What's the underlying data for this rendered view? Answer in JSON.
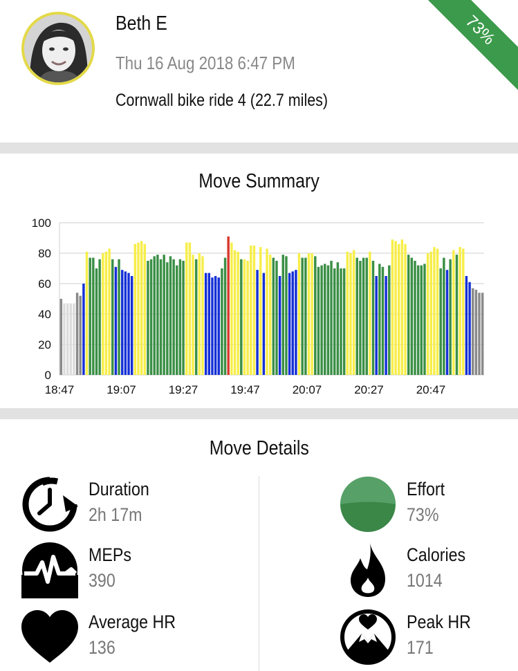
{
  "header": {
    "name": "Beth E",
    "date": "Thu 16 Aug 2018 6:47 PM",
    "activity": "Cornwall bike ride 4 (22.7 miles)",
    "effort_ribbon": "73%"
  },
  "summary": {
    "title": "Move Summary"
  },
  "chart_data": {
    "type": "bar",
    "y_ticks": [
      "0",
      "20",
      "40",
      "60",
      "80",
      "100"
    ],
    "x_ticks": [
      "18:47",
      "19:07",
      "19:27",
      "19:47",
      "20:07",
      "20:27",
      "20:47"
    ],
    "ylim": [
      0,
      100
    ],
    "grid": true,
    "zone_colors": {
      "grey": "#8a8a8a",
      "lightgrey": "#dcdcdc",
      "blue": "#1530d6",
      "green": "#3a8f45",
      "yellow": "#f7ee4a",
      "red": "#d9392e"
    },
    "values": [
      50,
      47,
      47,
      47,
      47,
      54,
      52,
      60,
      81,
      77,
      77,
      70,
      76,
      80,
      81,
      83,
      76,
      71,
      76,
      69,
      68,
      67,
      65,
      86,
      87,
      88,
      86,
      75,
      76,
      78,
      79,
      76,
      79,
      74,
      78,
      76,
      72,
      76,
      75,
      87,
      87,
      79,
      76,
      80,
      78,
      67,
      67,
      64,
      65,
      64,
      70,
      77,
      91,
      87,
      82,
      81,
      76,
      76,
      75,
      85,
      85,
      69,
      84,
      67,
      83,
      79,
      77,
      75,
      65,
      79,
      78,
      67,
      68,
      69,
      80,
      77,
      77,
      80,
      80,
      78,
      71,
      72,
      73,
      72,
      75,
      70,
      74,
      70,
      70,
      81,
      80,
      82,
      77,
      75,
      77,
      77,
      81,
      75,
      65,
      73,
      71,
      65,
      72,
      89,
      88,
      86,
      89,
      86,
      79,
      77,
      75,
      72,
      72,
      73,
      80,
      81,
      84,
      83,
      70,
      77,
      69,
      76,
      82,
      79,
      84,
      83,
      65,
      61,
      57,
      56,
      54,
      54
    ],
    "zones": [
      "grey",
      "lightgrey",
      "lightgrey",
      "lightgrey",
      "lightgrey",
      "grey",
      "grey",
      "blue",
      "yellow",
      "green",
      "green",
      "green",
      "green",
      "yellow",
      "yellow",
      "yellow",
      "green",
      "blue",
      "green",
      "blue",
      "blue",
      "blue",
      "blue",
      "yellow",
      "yellow",
      "yellow",
      "yellow",
      "green",
      "green",
      "green",
      "green",
      "green",
      "green",
      "green",
      "green",
      "green",
      "green",
      "green",
      "green",
      "yellow",
      "yellow",
      "yellow",
      "green",
      "yellow",
      "yellow",
      "blue",
      "blue",
      "blue",
      "blue",
      "blue",
      "green",
      "green",
      "red",
      "yellow",
      "yellow",
      "yellow",
      "green",
      "yellow",
      "yellow",
      "yellow",
      "yellow",
      "blue",
      "yellow",
      "blue",
      "yellow",
      "yellow",
      "green",
      "green",
      "blue",
      "green",
      "green",
      "blue",
      "blue",
      "blue",
      "yellow",
      "green",
      "green",
      "yellow",
      "yellow",
      "green",
      "green",
      "green",
      "green",
      "green",
      "green",
      "green",
      "green",
      "green",
      "green",
      "yellow",
      "yellow",
      "yellow",
      "green",
      "green",
      "green",
      "green",
      "yellow",
      "green",
      "blue",
      "green",
      "green",
      "blue",
      "green",
      "yellow",
      "yellow",
      "yellow",
      "yellow",
      "yellow",
      "green",
      "green",
      "green",
      "green",
      "green",
      "green",
      "yellow",
      "yellow",
      "yellow",
      "yellow",
      "green",
      "green",
      "blue",
      "green",
      "yellow",
      "green",
      "yellow",
      "yellow",
      "blue",
      "blue",
      "grey",
      "grey",
      "grey",
      "grey"
    ]
  },
  "details": {
    "title": "Move Details",
    "metrics": [
      {
        "label": "Duration",
        "value": "2h 17m",
        "icon": "stopwatch-icon"
      },
      {
        "label": "Effort",
        "value": "73%",
        "icon": "effort-circle-icon"
      },
      {
        "label": "MEPs",
        "value": "390",
        "icon": "meps-pulse-icon"
      },
      {
        "label": "Calories",
        "value": "1014",
        "icon": "flame-icon"
      },
      {
        "label": "Average HR",
        "value": "136",
        "icon": "heart-icon"
      },
      {
        "label": "Peak HR",
        "value": "171",
        "icon": "peak-heart-icon"
      }
    ]
  },
  "colors": {
    "accent_green": "#3b9a4b",
    "avatar_ring": "#e3d949",
    "effort_circle_top": "#4e9a5e",
    "effort_circle_bottom": "#3a8748"
  }
}
